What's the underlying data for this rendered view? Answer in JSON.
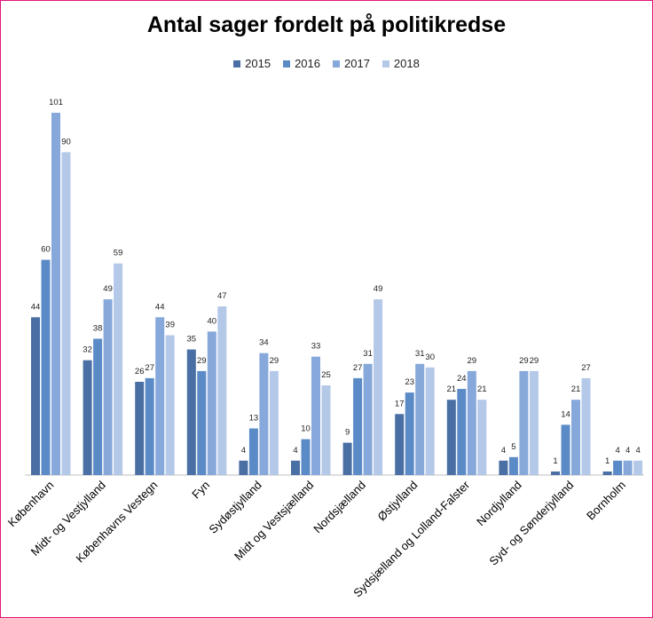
{
  "chart_data": {
    "type": "bar",
    "title": "Antal sager fordelt på politikredse",
    "legend_position": "top-center",
    "grid": false,
    "xlabel": "",
    "ylabel": "",
    "ylim": [
      0,
      101
    ],
    "categories": [
      "København",
      "Midt- og Vestjylland",
      "Københavns Vestegn",
      "Fyn",
      "Sydøstjylland",
      "Midt og Vestsjælland",
      "Nordsjælland",
      "Østjylland",
      "Sydsjælland og Lolland-Falster",
      "Nordjylland",
      "Syd- og Sønderjylland",
      "Bornholm"
    ],
    "series": [
      {
        "name": "2015",
        "color": "#4a6fa5",
        "values": [
          44,
          32,
          26,
          35,
          4,
          4,
          9,
          17,
          21,
          4,
          1,
          1
        ]
      },
      {
        "name": "2016",
        "color": "#5b8bc7",
        "values": [
          60,
          38,
          27,
          29,
          13,
          10,
          27,
          23,
          24,
          5,
          14,
          4
        ]
      },
      {
        "name": "2017",
        "color": "#86a8da",
        "values": [
          101,
          49,
          44,
          40,
          34,
          33,
          31,
          31,
          29,
          29,
          21,
          4
        ]
      },
      {
        "name": "2018",
        "color": "#b4c8e8",
        "values": [
          90,
          59,
          39,
          47,
          29,
          25,
          49,
          30,
          21,
          29,
          27,
          4
        ]
      }
    ]
  }
}
